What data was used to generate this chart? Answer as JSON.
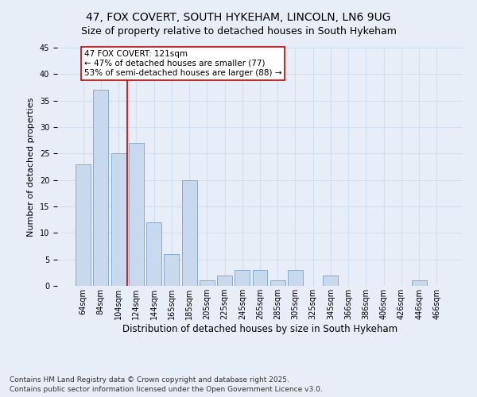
{
  "title": "47, FOX COVERT, SOUTH HYKEHAM, LINCOLN, LN6 9UG",
  "subtitle": "Size of property relative to detached houses in South Hykeham",
  "xlabel": "Distribution of detached houses by size in South Hykeham",
  "ylabel": "Number of detached properties",
  "categories": [
    "64sqm",
    "84sqm",
    "104sqm",
    "124sqm",
    "144sqm",
    "165sqm",
    "185sqm",
    "205sqm",
    "225sqm",
    "245sqm",
    "265sqm",
    "285sqm",
    "305sqm",
    "325sqm",
    "345sqm",
    "366sqm",
    "386sqm",
    "406sqm",
    "426sqm",
    "446sqm",
    "466sqm"
  ],
  "values": [
    23,
    37,
    25,
    27,
    12,
    6,
    20,
    1,
    2,
    3,
    3,
    1,
    3,
    0,
    2,
    0,
    0,
    0,
    0,
    1,
    0
  ],
  "bar_color": "#c9d9ed",
  "bar_edge_color": "#7aa6c8",
  "grid_color": "#d0dff0",
  "background_color": "#e8eef8",
  "property_line_x": 2.5,
  "annotation_text": "47 FOX COVERT: 121sqm\n← 47% of detached houses are smaller (77)\n53% of semi-detached houses are larger (88) →",
  "annotation_box_facecolor": "#ffffff",
  "annotation_box_edgecolor": "#cc0000",
  "vline_color": "#cc0000",
  "footer": "Contains HM Land Registry data © Crown copyright and database right 2025.\nContains public sector information licensed under the Open Government Licence v3.0.",
  "ylim": [
    0,
    45
  ],
  "title_fontsize": 10,
  "subtitle_fontsize": 9,
  "xlabel_fontsize": 8.5,
  "ylabel_fontsize": 8,
  "tick_fontsize": 7,
  "annot_fontsize": 7.5,
  "footer_fontsize": 6.5
}
